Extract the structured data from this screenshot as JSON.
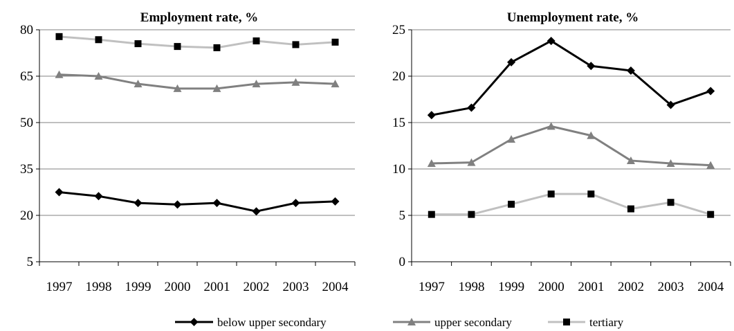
{
  "chart_data": [
    {
      "type": "line",
      "title": "Employment rate, %",
      "categories": [
        "1997",
        "1998",
        "1999",
        "2000",
        "2001",
        "2002",
        "2003",
        "2004"
      ],
      "ylim": [
        5,
        80
      ],
      "yticks": [
        5,
        20,
        35,
        50,
        65,
        80
      ],
      "grid": true,
      "series": [
        {
          "name": "below upper secondary",
          "color": "#000000",
          "marker": "diamond",
          "values": [
            27.5,
            26.2,
            24.0,
            23.5,
            24.0,
            21.3,
            24.0,
            24.5
          ]
        },
        {
          "name": "upper secondary",
          "color": "#808080",
          "marker": "triangle",
          "values": [
            65.5,
            65.0,
            62.5,
            61.0,
            61.0,
            62.5,
            63.0,
            62.5
          ]
        },
        {
          "name": "tertiary",
          "color": "#c0c0c0",
          "marker": "square",
          "values": [
            77.8,
            76.8,
            75.5,
            74.6,
            74.2,
            76.4,
            75.2,
            76.0
          ]
        }
      ]
    },
    {
      "type": "line",
      "title": "Unemployment rate, %",
      "categories": [
        "1997",
        "1998",
        "1999",
        "2000",
        "2001",
        "2002",
        "2003",
        "2004"
      ],
      "ylim": [
        0,
        25
      ],
      "yticks": [
        0,
        5,
        10,
        15,
        20,
        25
      ],
      "grid": true,
      "series": [
        {
          "name": "below upper secondary",
          "color": "#000000",
          "marker": "diamond",
          "values": [
            15.8,
            16.6,
            21.5,
            23.8,
            21.1,
            20.6,
            16.9,
            18.4
          ]
        },
        {
          "name": "upper secondary",
          "color": "#808080",
          "marker": "triangle",
          "values": [
            10.6,
            10.7,
            13.2,
            14.6,
            13.6,
            10.9,
            10.6,
            10.4
          ]
        },
        {
          "name": "tertiary",
          "color": "#c0c0c0",
          "marker": "square",
          "values": [
            5.1,
            5.1,
            6.2,
            7.3,
            7.3,
            5.7,
            6.4,
            5.1
          ]
        }
      ]
    }
  ],
  "legend": {
    "placement": "bottom-center",
    "items": [
      {
        "label": "below upper secondary",
        "color": "#000000",
        "marker": "diamond"
      },
      {
        "label": "upper secondary",
        "color": "#808080",
        "marker": "triangle"
      },
      {
        "label": "tertiary",
        "color": "#c0c0c0",
        "marker": "square"
      }
    ]
  }
}
